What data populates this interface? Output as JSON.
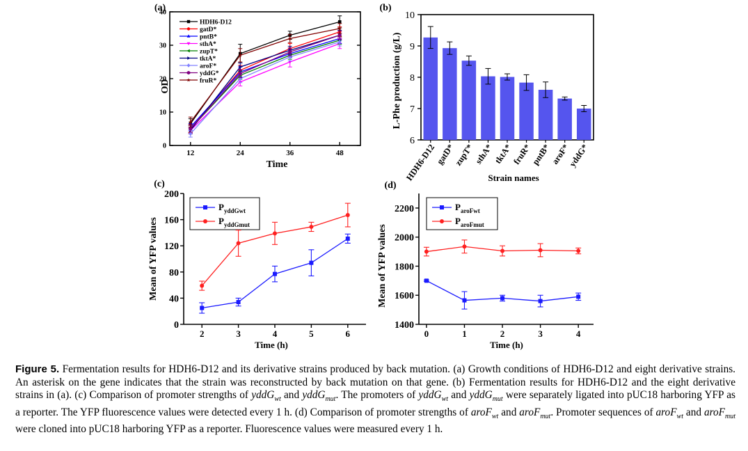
{
  "chart_data": [
    {
      "id": "a",
      "type": "line",
      "panel_label": "(a)",
      "xlabel": "Time",
      "ylabel": "OD",
      "x": [
        12,
        24,
        36,
        48
      ],
      "xticks": [
        "12",
        "24",
        "36",
        "48"
      ],
      "xlim": [
        7,
        53
      ],
      "ylim": [
        0,
        40
      ],
      "yticks": [
        0,
        10,
        20,
        30,
        40
      ],
      "series": [
        {
          "name": "HDH6-D12",
          "color": "#000000",
          "marker": "square",
          "values": [
            6.5,
            27.5,
            33,
            37
          ],
          "err": [
            1.5,
            2.8,
            1.2,
            1.8
          ]
        },
        {
          "name": "gatD*",
          "color": "#ff0000",
          "marker": "circle",
          "values": [
            5,
            22.5,
            29,
            34
          ],
          "err": [
            1.2,
            1.5,
            1.5,
            1.5
          ]
        },
        {
          "name": "pntB*",
          "color": "#0000ff",
          "marker": "triangle-up",
          "values": [
            5.5,
            22,
            27.5,
            32
          ],
          "err": [
            1,
            1.5,
            1.2,
            1.5
          ]
        },
        {
          "name": "sthA*",
          "color": "#ff00ff",
          "marker": "triangle-down",
          "values": [
            4.5,
            19,
            25,
            30.5
          ],
          "err": [
            1,
            1.2,
            1.5,
            1.5
          ]
        },
        {
          "name": "zupT*",
          "color": "#008000",
          "marker": "triangle-left",
          "values": [
            5,
            21,
            27,
            31.5
          ],
          "err": [
            1,
            1.2,
            1.2,
            1.2
          ]
        },
        {
          "name": "tktA*",
          "color": "#000080",
          "marker": "triangle-right",
          "values": [
            4.5,
            23.5,
            28.5,
            33
          ],
          "err": [
            1,
            1.2,
            1.2,
            1.5
          ]
        },
        {
          "name": "aroF*",
          "color": "#8080ff",
          "marker": "diamond",
          "values": [
            3.5,
            20,
            26.5,
            31
          ],
          "err": [
            1,
            1.2,
            1.2,
            1.2
          ]
        },
        {
          "name": "yddG*",
          "color": "#800080",
          "marker": "hexagon",
          "values": [
            5,
            21.5,
            28,
            33
          ],
          "err": [
            1,
            1.2,
            1.2,
            1.2
          ]
        },
        {
          "name": "fruR*",
          "color": "#800000",
          "marker": "star",
          "values": [
            7,
            27,
            32,
            35
          ],
          "err": [
            1.5,
            2,
            1.2,
            1.5
          ]
        }
      ]
    },
    {
      "id": "b",
      "type": "bar",
      "panel_label": "(b)",
      "xlabel": "Strain names",
      "ylabel": "L-Phe production (g/L)",
      "categories": [
        "HDH6-D12",
        "gatD*",
        "zupT*",
        "sthA*",
        "tktA*",
        "fruR*",
        "pntB*",
        "aroF*",
        "yddG*"
      ],
      "values": [
        9.27,
        8.93,
        8.53,
        8.03,
        8.01,
        7.83,
        7.6,
        7.32,
        7.0
      ],
      "err": [
        0.35,
        0.2,
        0.15,
        0.25,
        0.1,
        0.25,
        0.25,
        0.05,
        0.1
      ],
      "ylim": [
        6,
        10
      ],
      "yticks": [
        6,
        7,
        8,
        9,
        10
      ],
      "bar_color": "#5555ee"
    },
    {
      "id": "c",
      "type": "line",
      "panel_label": "(c)",
      "xlabel": "Time (h)",
      "ylabel": "Mean of YFP values",
      "x": [
        2,
        3,
        4,
        5,
        6
      ],
      "xticks": [
        "2",
        "3",
        "4",
        "5",
        "6"
      ],
      "xlim": [
        1.5,
        6.5
      ],
      "ylim": [
        0,
        200
      ],
      "yticks": [
        0,
        40,
        80,
        120,
        160,
        200
      ],
      "series": [
        {
          "name": "P",
          "sub": "yddGwt",
          "color": "#1a1aff",
          "marker": "square",
          "values": [
            25,
            34,
            77,
            94,
            131
          ],
          "err": [
            8,
            6,
            12,
            20,
            7
          ]
        },
        {
          "name": "P",
          "sub": "yddGmut",
          "color": "#ff2020",
          "marker": "circle",
          "values": [
            59,
            124,
            139,
            149,
            167
          ],
          "err": [
            7,
            20,
            17,
            7,
            18
          ]
        }
      ]
    },
    {
      "id": "d",
      "type": "line",
      "panel_label": "(d)",
      "xlabel": "Time (h)",
      "ylabel": "Mean of YFP values",
      "x": [
        0,
        1,
        2,
        3,
        4
      ],
      "xticks": [
        "0",
        "1",
        "2",
        "3",
        "4"
      ],
      "xlim": [
        -0.2,
        4.4
      ],
      "ylim": [
        1400,
        2300
      ],
      "yticks": [
        1400,
        1600,
        1800,
        2000,
        2200
      ],
      "series": [
        {
          "name": "P",
          "sub": "aroFwt",
          "color": "#1a1aff",
          "marker": "square",
          "values": [
            1700,
            1565,
            1580,
            1560,
            1590
          ],
          "err": [
            5,
            60,
            20,
            40,
            25
          ]
        },
        {
          "name": "P",
          "sub": "aroFmut",
          "color": "#ff2020",
          "marker": "circle",
          "values": [
            1900,
            1935,
            1905,
            1910,
            1905
          ],
          "err": [
            30,
            45,
            35,
            45,
            20
          ]
        }
      ]
    }
  ],
  "caption": {
    "label": "Figure 5.",
    "parts": [
      {
        "t": " Fermentation results for HDH6-D12 and its derivative strains produced by back mutation. (a) Growth conditions of HDH6-D12 and eight derivative strains. An asterisk on the gene indicates that the strain was reconstructed by back mutation on that gene. (b) Fermentation results for HDH6-D12 and the eight derivative strains in (a). (c) Comparison of promoter strengths of "
      },
      {
        "i": "yddG",
        "sub": "wt"
      },
      {
        "t": " and "
      },
      {
        "i": "yddG",
        "sub": "mut"
      },
      {
        "t": ". The promoters of "
      },
      {
        "i": "yddG",
        "sub": "wt"
      },
      {
        "t": " and "
      },
      {
        "i": "yddG",
        "sub": "mut"
      },
      {
        "t": " were separately ligated into pUC18 harboring YFP as a reporter. The YFP fluorescence values were detected every 1 h. (d) Comparison of promoter strengths of "
      },
      {
        "i": "aroF",
        "sub": "wt"
      },
      {
        "t": " and "
      },
      {
        "i": "aroF",
        "sub": "mut"
      },
      {
        "t": ". Promoter sequences of "
      },
      {
        "i": "aroF",
        "sub": "wt"
      },
      {
        "t": " and "
      },
      {
        "i": "aroF",
        "sub": "mut"
      },
      {
        "t": " were cloned into pUC18 harboring YFP as a reporter. Fluorescence values were measured every 1 h."
      }
    ]
  }
}
